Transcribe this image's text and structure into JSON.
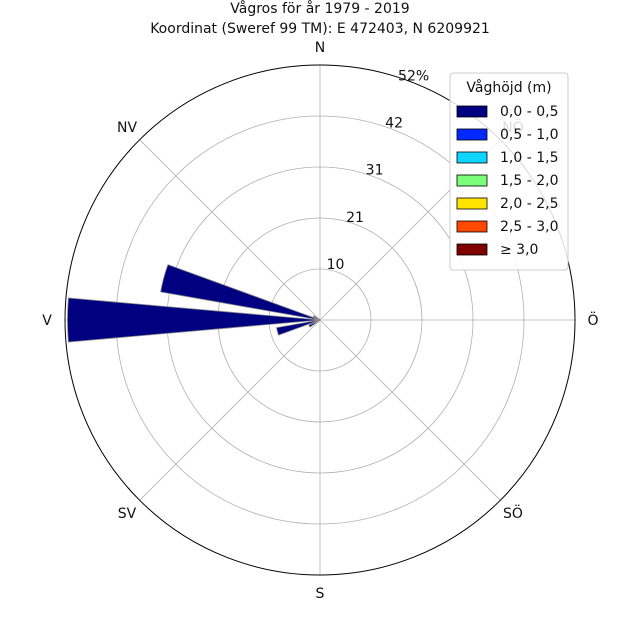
{
  "chart_data": {
    "type": "windrose",
    "title": "Vågros för år 1979 - 2019",
    "subtitle": "Koordinat (Sweref 99 TM): E 472403, N 6209921",
    "directions": [
      "N",
      "NV",
      "V",
      "SV",
      "S",
      "SÖ",
      "Ö",
      "NÖ"
    ],
    "rlim": [
      0,
      52
    ],
    "radial_ticks": [
      "10",
      "21",
      "31",
      "42",
      "52%"
    ],
    "radial_tick_values": [
      10.4,
      20.8,
      31.2,
      41.6,
      52
    ],
    "legend": {
      "title": "Våghöjd (m)",
      "placement": "top-right",
      "entries": [
        {
          "label": "0,0 - 0,5",
          "color": "#000080"
        },
        {
          "label": "0,5 - 1,0",
          "color": "#0028ff"
        },
        {
          "label": "1,0 - 1,5",
          "color": "#0dd5ff"
        },
        {
          "label": "1,5 - 2,0",
          "color": "#7bff7b"
        },
        {
          "label": "2,0 - 2,5",
          "color": "#ffe500"
        },
        {
          "label": "2,5 - 3,0",
          "color": "#ff4800"
        },
        {
          "label": "≥ 3,0",
          "color": "#800000"
        }
      ]
    },
    "sectors": [
      {
        "direction_deg": 270,
        "value": 51.5,
        "width_deg": 10
      },
      {
        "direction_deg": 285,
        "value": 33.0,
        "width_deg": 10
      },
      {
        "direction_deg": 255,
        "value": 9.0,
        "width_deg": 10
      },
      {
        "direction_deg": 240,
        "value": 2.5,
        "width_deg": 10
      },
      {
        "direction_deg": 300,
        "value": 1.5,
        "width_deg": 10
      }
    ],
    "grid": true
  }
}
